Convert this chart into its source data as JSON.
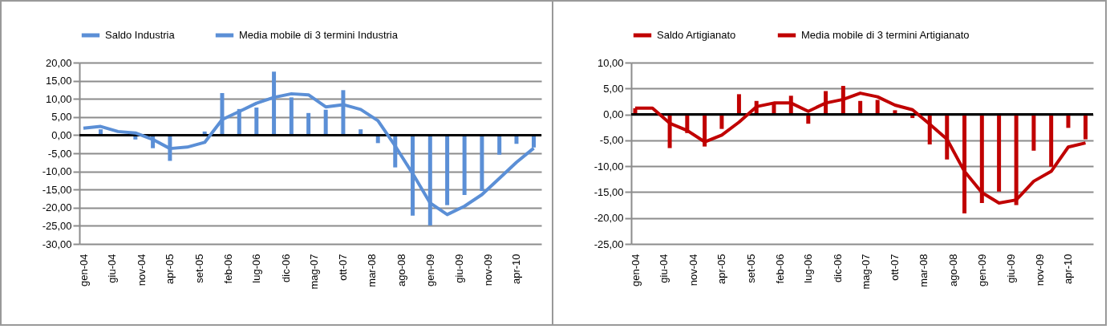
{
  "chart_data": [
    {
      "type": "bar",
      "x": [
        "2004-01",
        "2004-04",
        "2004-07",
        "2004-10",
        "2005-01",
        "2005-04",
        "2005-07",
        "2005-10",
        "2006-01",
        "2006-04",
        "2006-07",
        "2006-10",
        "2007-01",
        "2007-04",
        "2007-07",
        "2007-10",
        "2008-01",
        "2008-04",
        "2008-07",
        "2008-10",
        "2009-01",
        "2009-04",
        "2009-07",
        "2009-10",
        "2010-01",
        "2010-04",
        "2010-07"
      ],
      "series": [
        {
          "name": "Saldo Industria",
          "color": "#5b8fd6",
          "values": [
            null,
            1.6,
            0.3,
            -1.2,
            -3.6,
            -7.1,
            null,
            1.0,
            11.6,
            7.2,
            7.6,
            17.5,
            10.4,
            6.1,
            7.0,
            12.4,
            1.6,
            -2.2,
            -8.9,
            -22.2,
            -24.9,
            -19.3,
            -16.5,
            -15.4,
            -5.4,
            -2.4,
            -3.4
          ]
        },
        {
          "name": "Media mobile di 3 termini Industria",
          "type": "line",
          "color": "#5b8fd6",
          "values": [
            1.9,
            2.4,
            1.0,
            0.6,
            -1.2,
            -3.7,
            -3.3,
            -2.0,
            4.3,
            6.5,
            8.8,
            10.4,
            11.4,
            11.1,
            7.8,
            8.4,
            7.1,
            4.0,
            -3.0,
            -10.6,
            -18.7,
            -21.9,
            -19.6,
            -16.4,
            -11.9,
            -7.5,
            -3.6
          ]
        }
      ],
      "xlim": [
        "2004-01-01",
        "2010-07-20"
      ],
      "xticks": [
        {
          "value": "2004-01",
          "label": "gen-04"
        },
        {
          "value": "2004-06",
          "label": "giu-04"
        },
        {
          "value": "2004-11",
          "label": "nov-04"
        },
        {
          "value": "2005-04",
          "label": "apr-05"
        },
        {
          "value": "2005-09",
          "label": "set-05"
        },
        {
          "value": "2006-02",
          "label": "feb-06"
        },
        {
          "value": "2006-07",
          "label": "lug-06"
        },
        {
          "value": "2006-12",
          "label": "dic-06"
        },
        {
          "value": "2007-05",
          "label": "mag-07"
        },
        {
          "value": "2007-10",
          "label": "ott-07"
        },
        {
          "value": "2008-03",
          "label": "mar-08"
        },
        {
          "value": "2008-08",
          "label": "ago-08"
        },
        {
          "value": "2009-01",
          "label": "gen-09"
        },
        {
          "value": "2009-06",
          "label": "giu-09"
        },
        {
          "value": "2009-11",
          "label": "nov-09"
        },
        {
          "value": "2010-04",
          "label": "apr-10"
        }
      ],
      "ylim": [
        -30,
        20
      ],
      "yticks": [
        {
          "value": -30,
          "label": "-30,00"
        },
        {
          "value": -25,
          "label": "-25,00"
        },
        {
          "value": -20,
          "label": "-20,00"
        },
        {
          "value": -15,
          "label": "-15,00"
        },
        {
          "value": -10,
          "label": "-10,00"
        },
        {
          "value": -5,
          "label": "-5,00"
        },
        {
          "value": 0,
          "label": "0,00"
        },
        {
          "value": 5,
          "label": "5,00"
        },
        {
          "value": 10,
          "label": "10,00"
        },
        {
          "value": 15,
          "label": "15,00"
        },
        {
          "value": 20,
          "label": "20,00"
        }
      ],
      "grid": "y",
      "legend": "top",
      "ref_lines": [
        {
          "axis": "y",
          "value": 0,
          "color": "#000000"
        }
      ]
    },
    {
      "type": "bar",
      "x": [
        "2004-01",
        "2004-04",
        "2004-07",
        "2004-10",
        "2005-01",
        "2005-04",
        "2005-07",
        "2005-10",
        "2006-01",
        "2006-04",
        "2006-07",
        "2006-10",
        "2007-01",
        "2007-04",
        "2007-07",
        "2007-10",
        "2008-01",
        "2008-04",
        "2008-07",
        "2008-10",
        "2009-01",
        "2009-04",
        "2009-07",
        "2009-10",
        "2010-01",
        "2010-04",
        "2010-07"
      ],
      "series": [
        {
          "name": "Saldo Artigianato",
          "color": "#c00000",
          "values": [
            1.2,
            null,
            -6.5,
            -3.6,
            -6.2,
            -2.8,
            3.9,
            2.6,
            2.0,
            3.6,
            -1.8,
            4.5,
            5.5,
            2.6,
            2.8,
            0.8,
            -0.7,
            -5.8,
            -8.7,
            -19.1,
            -17.1,
            -14.9,
            -17.5,
            -7.0,
            -10.1,
            -2.6,
            -4.8
          ]
        },
        {
          "name": "Media mobile di 3 termini Artigianato",
          "type": "line",
          "color": "#c00000",
          "values": [
            1.2,
            1.2,
            -1.7,
            -3.1,
            -5.3,
            -4.0,
            -1.5,
            1.5,
            2.2,
            2.2,
            0.6,
            2.2,
            2.9,
            4.1,
            3.4,
            1.8,
            0.9,
            -1.9,
            -4.8,
            -11.0,
            -15.1,
            -17.1,
            -16.5,
            -12.9,
            -11.0,
            -6.3,
            -5.5
          ]
        }
      ],
      "xlim": [
        "2004-01-01",
        "2010-07-20"
      ],
      "xticks": [
        {
          "value": "2004-01",
          "label": "gen-04"
        },
        {
          "value": "2004-06",
          "label": "giu-04"
        },
        {
          "value": "2004-11",
          "label": "nov-04"
        },
        {
          "value": "2005-04",
          "label": "apr-05"
        },
        {
          "value": "2005-09",
          "label": "set-05"
        },
        {
          "value": "2006-02",
          "label": "feb-06"
        },
        {
          "value": "2006-07",
          "label": "lug-06"
        },
        {
          "value": "2006-12",
          "label": "dic-06"
        },
        {
          "value": "2007-05",
          "label": "mag-07"
        },
        {
          "value": "2007-10",
          "label": "ott-07"
        },
        {
          "value": "2008-03",
          "label": "mar-08"
        },
        {
          "value": "2008-08",
          "label": "ago-08"
        },
        {
          "value": "2009-01",
          "label": "gen-09"
        },
        {
          "value": "2009-06",
          "label": "giu-09"
        },
        {
          "value": "2009-11",
          "label": "nov-09"
        },
        {
          "value": "2010-04",
          "label": "apr-10"
        }
      ],
      "ylim": [
        -25,
        10
      ],
      "yticks": [
        {
          "value": -25,
          "label": "-25,00"
        },
        {
          "value": -20,
          "label": "-20,00"
        },
        {
          "value": -15,
          "label": "-15,00"
        },
        {
          "value": -10,
          "label": "-10,00"
        },
        {
          "value": -5,
          "label": "-5,00"
        },
        {
          "value": 0,
          "label": "0,00"
        },
        {
          "value": 5,
          "label": "5,00"
        },
        {
          "value": 10,
          "label": "10,00"
        }
      ],
      "grid": "y",
      "legend": "top",
      "ref_lines": [
        {
          "axis": "y",
          "value": 0,
          "color": "#000000"
        }
      ]
    }
  ]
}
